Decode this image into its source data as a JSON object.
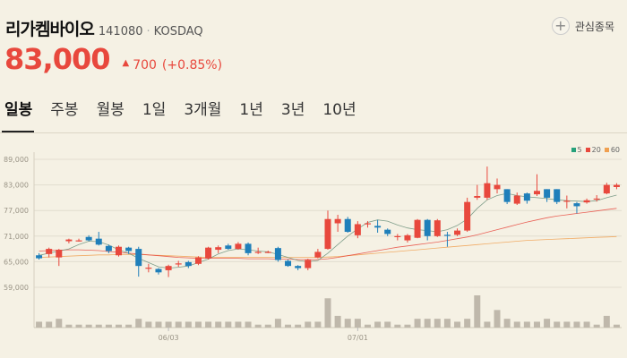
{
  "stock": {
    "name": "리가켐바이오",
    "code": "141080",
    "separator": "·",
    "market": "KOSDAQ",
    "favorite_label": "관심종목",
    "favorite_icon": "+",
    "price": "83,000",
    "change_arrow": "▲",
    "change": "700",
    "change_pct": "(+0.85%)"
  },
  "tabs": [
    "일봉",
    "주봉",
    "월봉",
    "1일",
    "3개월",
    "1년",
    "3년",
    "10년"
  ],
  "legend": [
    {
      "label": "5",
      "color": "#26a17b"
    },
    {
      "label": "20",
      "color": "#e8483d"
    },
    {
      "label": "60",
      "color": "#f0a050"
    }
  ],
  "colors": {
    "up": "#e8483d",
    "down": "#1f7fba",
    "volume": "#bfb8ab"
  },
  "chart_data": {
    "type": "candlestick",
    "y_ticks": [
      "89,000",
      "83,000",
      "77,000",
      "71,000",
      "65,000",
      "59,000"
    ],
    "y_values": [
      89000,
      83000,
      77000,
      71000,
      65000,
      59000
    ],
    "ylim": [
      59000,
      89000
    ],
    "x_labels": [
      {
        "label": "06/03",
        "index": 13
      },
      {
        "label": "07/01",
        "index": 32
      }
    ],
    "candles": [
      [
        66500,
        65800,
        67000,
        65500,
        2
      ],
      [
        66800,
        68000,
        68300,
        66000,
        2
      ],
      [
        66000,
        67800,
        68000,
        64000,
        3
      ],
      [
        69800,
        70200,
        70400,
        69300,
        1
      ],
      [
        70000,
        70000,
        70400,
        69700,
        1
      ],
      [
        70800,
        70000,
        71200,
        69800,
        1
      ],
      [
        70400,
        69000,
        72000,
        68800,
        1
      ],
      [
        68700,
        67500,
        69000,
        67000,
        1
      ],
      [
        66500,
        68500,
        68800,
        66200,
        1
      ],
      [
        68300,
        67500,
        68500,
        66800,
        1
      ],
      [
        68000,
        64000,
        68500,
        61500,
        3
      ],
      [
        63600,
        63600,
        64500,
        62500,
        2
      ],
      [
        63300,
        62500,
        63500,
        62000,
        2
      ],
      [
        63000,
        64000,
        64300,
        61400,
        2
      ],
      [
        64600,
        64600,
        65200,
        63800,
        2
      ],
      [
        64900,
        64000,
        65200,
        63500,
        2
      ],
      [
        64500,
        66000,
        66300,
        64200,
        2
      ],
      [
        65800,
        68300,
        68500,
        65500,
        2
      ],
      [
        67800,
        68400,
        68800,
        67000,
        2
      ],
      [
        68800,
        68000,
        69200,
        67800,
        2
      ],
      [
        68000,
        69200,
        69600,
        67800,
        2
      ],
      [
        69200,
        67000,
        69500,
        66500,
        2
      ],
      [
        67300,
        67300,
        68300,
        66800,
        1
      ],
      [
        67300,
        67300,
        67600,
        67000,
        1
      ],
      [
        68200,
        65400,
        68500,
        65000,
        3
      ],
      [
        65200,
        64000,
        65500,
        63800,
        1
      ],
      [
        64000,
        63500,
        64200,
        63000,
        1
      ],
      [
        63500,
        65400,
        65700,
        63000,
        2
      ],
      [
        66000,
        67300,
        68000,
        65800,
        2
      ],
      [
        68000,
        75000,
        77000,
        67800,
        10
      ],
      [
        74000,
        75000,
        76000,
        72000,
        4
      ],
      [
        75000,
        72000,
        75500,
        71800,
        3
      ],
      [
        71200,
        73800,
        74500,
        70500,
        3
      ],
      [
        74000,
        74000,
        74500,
        73000,
        1
      ],
      [
        73400,
        73000,
        74800,
        71800,
        2
      ],
      [
        72500,
        71500,
        72800,
        71000,
        2
      ],
      [
        71000,
        71000,
        71500,
        70000,
        1
      ],
      [
        70000,
        71200,
        71500,
        69500,
        1
      ],
      [
        70600,
        74800,
        75000,
        70500,
        3
      ],
      [
        74800,
        71000,
        75000,
        70000,
        3
      ],
      [
        71000,
        74700,
        75000,
        70800,
        3
      ],
      [
        71300,
        71200,
        72000,
        68500,
        3
      ],
      [
        71300,
        72300,
        72800,
        71000,
        2
      ],
      [
        72300,
        79000,
        80000,
        72000,
        3
      ],
      [
        80000,
        80400,
        83000,
        79500,
        11
      ],
      [
        80000,
        83400,
        87300,
        79500,
        2
      ],
      [
        82000,
        83000,
        84500,
        81000,
        6
      ],
      [
        82000,
        79000,
        82000,
        78500,
        3
      ],
      [
        78600,
        80500,
        81200,
        78300,
        2
      ],
      [
        81000,
        79300,
        81200,
        78600,
        2
      ],
      [
        80800,
        81600,
        85500,
        80400,
        2
      ],
      [
        82000,
        80000,
        82000,
        79000,
        3
      ],
      [
        82000,
        79000,
        82000,
        78500,
        2
      ],
      [
        79300,
        79300,
        80500,
        77500,
        2
      ],
      [
        78700,
        78000,
        79000,
        76300,
        2
      ],
      [
        78900,
        79400,
        79800,
        78600,
        2
      ],
      [
        79600,
        79800,
        80600,
        79100,
        1
      ],
      [
        81000,
        83000,
        83500,
        80800,
        4
      ],
      [
        82500,
        83000,
        83400,
        82000,
        1
      ]
    ],
    "ma5": [
      66500,
      67000,
      67500,
      68000,
      69000,
      69800,
      69700,
      68900,
      67800,
      67000,
      65800,
      64800,
      63800,
      63500,
      63700,
      64000,
      64800,
      65600,
      66800,
      67600,
      68000,
      67800,
      67500,
      67300,
      66700,
      66000,
      65300,
      65000,
      65300,
      67000,
      69000,
      71000,
      72700,
      74200,
      74800,
      74500,
      73600,
      72900,
      72500,
      72300,
      72000,
      72500,
      73500,
      75000,
      77500,
      79500,
      80500,
      81000,
      80500,
      80200,
      80000,
      79800,
      79500,
      79300,
      79200,
      79100,
      79300,
      80000,
      80600
    ],
    "ma20": [
      67500,
      67600,
      67700,
      67800,
      67800,
      67700,
      67600,
      67400,
      67200,
      67000,
      66800,
      66600,
      66400,
      66200,
      66000,
      65900,
      65800,
      65800,
      65800,
      65800,
      65800,
      65700,
      65700,
      65700,
      65600,
      65600,
      65500,
      65500,
      65500,
      65700,
      66000,
      66400,
      66800,
      67200,
      67600,
      68000,
      68400,
      68700,
      69000,
      69300,
      69600,
      70000,
      70400,
      70800,
      71300,
      71900,
      72500,
      73100,
      73700,
      74300,
      74800,
      75300,
      75700,
      76000,
      76300,
      76600,
      76900,
      77200,
      77500
    ],
    "ma60": [
      66000,
      66100,
      66200,
      66300,
      66400,
      66500,
      66600,
      66600,
      66700,
      66700,
      66700,
      66600,
      66500,
      66400,
      66300,
      66200,
      66100,
      66000,
      66000,
      66000,
      66000,
      66000,
      66000,
      66000,
      66000,
      66000,
      66000,
      66000,
      66000,
      66100,
      66200,
      66400,
      66600,
      66800,
      67000,
      67200,
      67400,
      67600,
      67800,
      68000,
      68200,
      68400,
      68600,
      68800,
      69000,
      69200,
      69400,
      69600,
      69800,
      70000,
      70100,
      70200,
      70300,
      70400,
      70500,
      70600,
      70700,
      70800,
      70900
    ]
  }
}
